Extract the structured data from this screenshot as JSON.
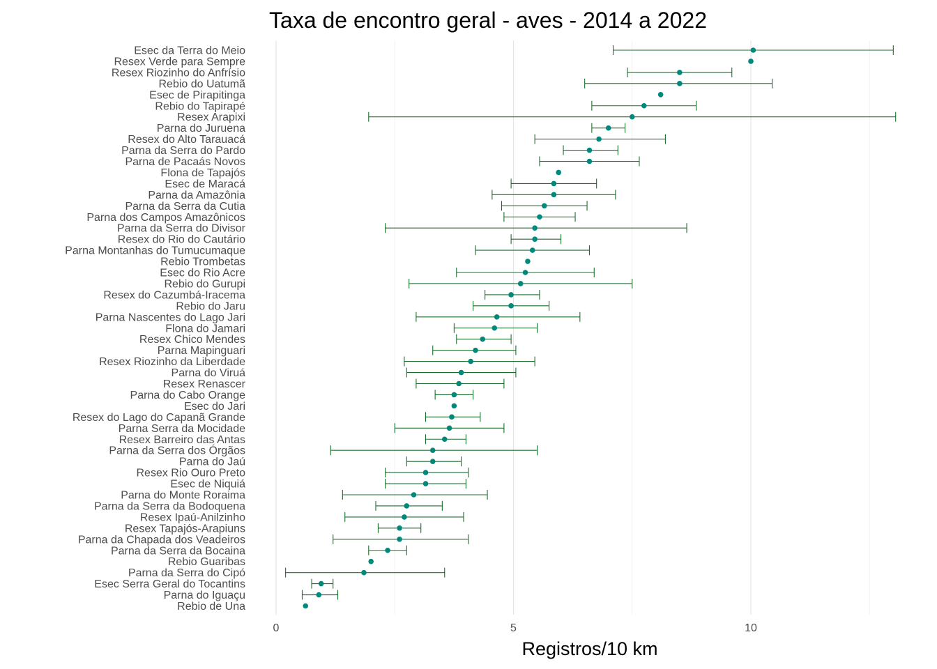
{
  "chart_data": {
    "type": "scatter",
    "title": "Taxa de encontro geral - aves - 2014 a 2022",
    "xlabel": "Registros/10 km",
    "ylabel": "",
    "xlim": [
      0,
      13
    ],
    "x_ticks": [
      0,
      5,
      10
    ],
    "x_tick_labels": [
      "0",
      "5",
      "10"
    ],
    "grid": true,
    "legend": "none",
    "colors": {
      "point": "#00897b",
      "errorbar": "#1b6e2c",
      "grid": "#e5e5e5"
    },
    "series": [
      {
        "values": [
          {
            "label": "Esec da Terra do Meio",
            "x": 10.05,
            "xmin": 7.1,
            "xmax": 13.0
          },
          {
            "label": "Resex Verde para Sempre",
            "x": 10.0,
            "xmin": null,
            "xmax": null
          },
          {
            "label": "Resex Riozinho do Anfrísio",
            "x": 8.5,
            "xmin": 7.4,
            "xmax": 9.6
          },
          {
            "label": "Rebio do Uatumã",
            "x": 8.5,
            "xmin": 6.5,
            "xmax": 10.45
          },
          {
            "label": "Esec de Pirapitinga",
            "x": 8.1,
            "xmin": null,
            "xmax": null
          },
          {
            "label": "Rebio do Tapirapé",
            "x": 7.75,
            "xmin": 6.65,
            "xmax": 8.85
          },
          {
            "label": "Resex Arapixi",
            "x": 7.5,
            "xmin": 1.95,
            "xmax": 13.05
          },
          {
            "label": "Parna do Juruena",
            "x": 7.0,
            "xmin": 6.65,
            "xmax": 7.35
          },
          {
            "label": "Resex do Alto Tarauacá",
            "x": 6.8,
            "xmin": 5.45,
            "xmax": 8.2
          },
          {
            "label": "Parna da Serra do Pardo",
            "x": 6.6,
            "xmin": 6.05,
            "xmax": 7.2
          },
          {
            "label": "Parna de Pacaás Novos",
            "x": 6.6,
            "xmin": 5.55,
            "xmax": 7.65
          },
          {
            "label": "Flona de Tapajós",
            "x": 5.95,
            "xmin": null,
            "xmax": null
          },
          {
            "label": "Esec de Maracá",
            "x": 5.85,
            "xmin": 4.95,
            "xmax": 6.75
          },
          {
            "label": "Parna da Amazônia",
            "x": 5.85,
            "xmin": 4.55,
            "xmax": 7.15
          },
          {
            "label": "Parna da Serra da Cutia",
            "x": 5.65,
            "xmin": 4.75,
            "xmax": 6.55
          },
          {
            "label": "Parna dos Campos Amazônicos",
            "x": 5.55,
            "xmin": 4.8,
            "xmax": 6.3
          },
          {
            "label": "Parna da Serra do Divisor",
            "x": 5.45,
            "xmin": 2.3,
            "xmax": 8.65
          },
          {
            "label": "Resex do Rio do Cautário",
            "x": 5.45,
            "xmin": 4.95,
            "xmax": 6.0
          },
          {
            "label": "Parna Montanhas do Tumucumaque",
            "x": 5.4,
            "xmin": 4.2,
            "xmax": 6.6
          },
          {
            "label": "Rebio Trombetas",
            "x": 5.3,
            "xmin": null,
            "xmax": null
          },
          {
            "label": "Esec do Rio Acre",
            "x": 5.25,
            "xmin": 3.8,
            "xmax": 6.7
          },
          {
            "label": "Rebio do Gurupi",
            "x": 5.15,
            "xmin": 2.8,
            "xmax": 7.5
          },
          {
            "label": "Resex do Cazumbá-Iracema",
            "x": 4.95,
            "xmin": 4.4,
            "xmax": 5.55
          },
          {
            "label": "Rebio do Jaru",
            "x": 4.95,
            "xmin": 4.15,
            "xmax": 5.75
          },
          {
            "label": "Parna Nascentes do Lago Jari",
            "x": 4.65,
            "xmin": 2.95,
            "xmax": 6.4
          },
          {
            "label": "Flona do Jamari",
            "x": 4.6,
            "xmin": 3.75,
            "xmax": 5.5
          },
          {
            "label": "Resex Chico Mendes",
            "x": 4.35,
            "xmin": 3.8,
            "xmax": 4.95
          },
          {
            "label": "Parna Mapinguari",
            "x": 4.2,
            "xmin": 3.3,
            "xmax": 5.05
          },
          {
            "label": "Resex Riozinho da Liberdade",
            "x": 4.1,
            "xmin": 2.7,
            "xmax": 5.45
          },
          {
            "label": "Parna do Viruá",
            "x": 3.9,
            "xmin": 2.75,
            "xmax": 5.05
          },
          {
            "label": "Resex Renascer",
            "x": 3.85,
            "xmin": 2.95,
            "xmax": 4.8
          },
          {
            "label": "Parna do Cabo Orange",
            "x": 3.75,
            "xmin": 3.35,
            "xmax": 4.15
          },
          {
            "label": "Esec do Jari",
            "x": 3.75,
            "xmin": null,
            "xmax": null
          },
          {
            "label": "Resex do Lago do Capanã Grande",
            "x": 3.7,
            "xmin": 3.15,
            "xmax": 4.3
          },
          {
            "label": "Parna Serra da Mocidade",
            "x": 3.65,
            "xmin": 2.5,
            "xmax": 4.8
          },
          {
            "label": "Resex Barreiro das Antas",
            "x": 3.55,
            "xmin": 3.15,
            "xmax": 4.0
          },
          {
            "label": "Parna da Serra dos Órgãos",
            "x": 3.3,
            "xmin": 1.15,
            "xmax": 5.5
          },
          {
            "label": "Parna do Jaú",
            "x": 3.3,
            "xmin": 2.75,
            "xmax": 3.9
          },
          {
            "label": "Resex Rio Ouro Preto",
            "x": 3.15,
            "xmin": 2.3,
            "xmax": 4.05
          },
          {
            "label": "Esec de Niquiá",
            "x": 3.15,
            "xmin": 2.3,
            "xmax": 4.0
          },
          {
            "label": "Parna do Monte Roraima",
            "x": 2.9,
            "xmin": 1.4,
            "xmax": 4.45
          },
          {
            "label": "Parna da Serra da Bodoquena",
            "x": 2.75,
            "xmin": 2.1,
            "xmax": 3.5
          },
          {
            "label": "Resex Ipaú-Anilzinho",
            "x": 2.7,
            "xmin": 1.45,
            "xmax": 3.95
          },
          {
            "label": "Resex Tapajós-Arapiuns",
            "x": 2.6,
            "xmin": 2.15,
            "xmax": 3.05
          },
          {
            "label": "Parna da Chapada dos Veadeiros",
            "x": 2.6,
            "xmin": 1.2,
            "xmax": 4.05
          },
          {
            "label": "Parna da Serra da Bocaina",
            "x": 2.35,
            "xmin": 1.95,
            "xmax": 2.75
          },
          {
            "label": "Rebio Guaribas",
            "x": 2.0,
            "xmin": null,
            "xmax": null
          },
          {
            "label": "Parna da Serra do Cipó",
            "x": 1.85,
            "xmin": 0.2,
            "xmax": 3.55
          },
          {
            "label": "Esec Serra Geral do Tocantins",
            "x": 0.95,
            "xmin": 0.75,
            "xmax": 1.2
          },
          {
            "label": "Parna do Iguaçu",
            "x": 0.9,
            "xmin": 0.55,
            "xmax": 1.3
          },
          {
            "label": "Rebio de Una",
            "x": 0.62,
            "xmin": null,
            "xmax": null
          }
        ]
      }
    ]
  }
}
